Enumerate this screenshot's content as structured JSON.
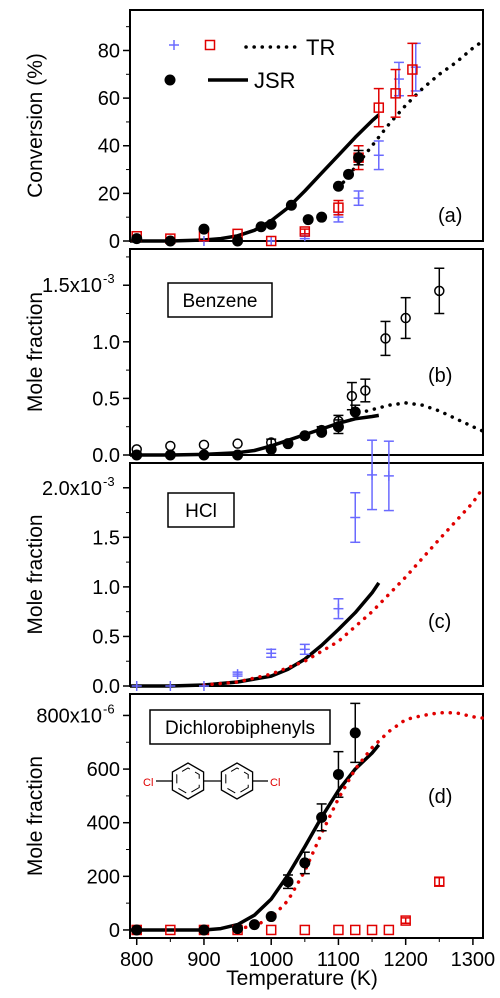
{
  "x_axis": {
    "label": "Temperature (K)",
    "range": [
      790,
      1315
    ],
    "ticks": [
      800,
      900,
      1000,
      1100,
      1200,
      1300
    ]
  },
  "legend": {
    "items": [
      {
        "marker": "cross",
        "color": "#6a6aff"
      },
      {
        "marker": "open-square",
        "color": "#e00000"
      },
      {
        "line": "dotted",
        "color": "#000000",
        "label": "TR"
      },
      {
        "marker": "filled-circle",
        "color": "#000000"
      },
      {
        "line": "solid",
        "color": "#000000",
        "label": "JSR"
      }
    ]
  },
  "colors": {
    "blue": "#6a6aff",
    "red": "#e00000",
    "black": "#000000"
  },
  "chart_data": [
    {
      "panel": "(a)",
      "type": "scatter",
      "ylabel": "Conversion (%)",
      "ylim": [
        0,
        97
      ],
      "ytick_labels": [
        "0",
        "20",
        "40",
        "60",
        "80"
      ],
      "ytick_values": [
        0,
        20,
        40,
        60,
        80
      ],
      "series": [
        {
          "name": "TR",
          "marker": "cross",
          "color": "#6a6aff",
          "x": [
            800,
            850,
            900,
            950,
            1000,
            1050,
            1100,
            1130,
            1160,
            1190,
            1215
          ],
          "y": [
            1,
            0,
            0,
            0,
            0,
            2,
            10,
            18,
            36,
            68,
            73
          ],
          "err": [
            0,
            0,
            0,
            0,
            0,
            1,
            2,
            3,
            6,
            7,
            10
          ]
        },
        {
          "name": "TR",
          "marker": "open-square",
          "color": "#e00000",
          "x": [
            800,
            850,
            900,
            950,
            1000,
            1050,
            1100,
            1130,
            1160,
            1185,
            1210
          ],
          "y": [
            2,
            1,
            2,
            3,
            0,
            4,
            14,
            35,
            56,
            62,
            72
          ],
          "err": [
            0,
            0,
            0,
            0,
            0,
            1,
            3,
            5,
            8,
            10,
            11
          ]
        },
        {
          "name": "JSR",
          "marker": "filled-circle",
          "color": "#000000",
          "x": [
            800,
            850,
            900,
            950,
            985,
            1000,
            1030,
            1055,
            1075,
            1100,
            1115,
            1130
          ],
          "y": [
            1,
            0,
            5,
            0,
            6,
            7,
            15,
            9,
            10,
            23,
            28,
            35
          ],
          "err": [
            0,
            0,
            0,
            0,
            0,
            0,
            0,
            0,
            0,
            0,
            0,
            3
          ]
        },
        {
          "name": "JSR",
          "line": "solid",
          "color": "#000000",
          "x": [
            790,
            850,
            900,
            925,
            950,
            975,
            1000,
            1025,
            1050,
            1075,
            1100,
            1125,
            1150,
            1160
          ],
          "y": [
            0,
            0,
            0.4,
            1,
            2.2,
            4.5,
            8.5,
            14,
            21,
            28.5,
            36,
            43.5,
            50.5,
            53
          ]
        },
        {
          "name": "TR",
          "line": "dotted",
          "color": "#000000",
          "x": [
            1100,
            1125,
            1150,
            1175,
            1200,
            1225,
            1250,
            1275,
            1300,
            1315
          ],
          "y": [
            22,
            31,
            40,
            49,
            57,
            64,
            70,
            75,
            81,
            84
          ]
        }
      ]
    },
    {
      "panel": "(b)",
      "type": "scatter",
      "title_box": "Benzene",
      "ylabel": "Mole fraction",
      "ylim": [
        0,
        0.00182
      ],
      "ytick_labels": [
        "0.0",
        "0.5",
        "1.0",
        "1.5x10"
      ],
      "ytick_values": [
        0,
        0.0005,
        0.001,
        0.0015
      ],
      "ytick_exponent": "-3",
      "series": [
        {
          "marker": "open-circle",
          "color": "#000000",
          "x": [
            800,
            850,
            900,
            950,
            1000,
            1050,
            1075,
            1100,
            1120,
            1140,
            1170,
            1200,
            1250
          ],
          "y": [
            5e-05,
            8e-05,
            9e-05,
            0.0001,
            0.00011,
            0.00017,
            0.00022,
            0.0003,
            0.00052,
            0.00057,
            0.00103,
            0.00121,
            0.00145
          ],
          "err": [
            0,
            0,
            0,
            0,
            3e-05,
            0,
            3e-05,
            5e-05,
            0.00012,
            0.0001,
            0.00015,
            0.00018,
            0.0002
          ]
        },
        {
          "marker": "filled-circle",
          "color": "#000000",
          "x": [
            800,
            850,
            900,
            950,
            1000,
            1025,
            1050,
            1075,
            1100,
            1125
          ],
          "y": [
            0,
            0,
            0,
            0,
            5e-05,
            0.0001,
            0.00017,
            0.0002,
            0.00025,
            0.00038
          ],
          "err": [
            0,
            0,
            0,
            0,
            0,
            0,
            0,
            0,
            6e-05,
            6e-05
          ]
        },
        {
          "line": "solid",
          "color": "#000000",
          "x": [
            790,
            850,
            900,
            950,
            975,
            1000,
            1025,
            1050,
            1075,
            1100,
            1125,
            1150,
            1160
          ],
          "y": [
            0,
            0,
            5e-06,
            2e-05,
            4e-05,
            8e-05,
            0.00013,
            0.00018,
            0.00023,
            0.00028,
            0.00032,
            0.00034,
            0.00035
          ]
        },
        {
          "line": "dotted",
          "color": "#000000",
          "x": [
            1130,
            1150,
            1175,
            1200,
            1225,
            1250,
            1275,
            1300,
            1315
          ],
          "y": [
            0.00037,
            0.0004,
            0.00044,
            0.00046,
            0.00044,
            0.00039,
            0.00032,
            0.00025,
            0.00021
          ]
        }
      ]
    },
    {
      "panel": "(c)",
      "type": "scatter",
      "title_box": "HCl",
      "ylabel": "Mole fraction",
      "ylim": [
        0,
        0.00225
      ],
      "ytick_labels": [
        "0.0",
        "0.5",
        "1.0",
        "1.5",
        "2.0x10"
      ],
      "ytick_values": [
        0,
        0.0005,
        0.001,
        0.0015,
        0.002
      ],
      "ytick_exponent": "-3",
      "series": [
        {
          "marker": "cross",
          "color": "#6a6aff",
          "x": [
            800,
            850,
            900,
            950,
            1000,
            1050,
            1100,
            1125,
            1150,
            1175
          ],
          "y": [
            0,
            0,
            0,
            0.00012,
            0.00033,
            0.00037,
            0.00078,
            0.0017,
            0.00213,
            0.00212
          ],
          "err": [
            0,
            0,
            0,
            2e-05,
            4e-05,
            5e-05,
            0.0001,
            0.00025,
            0.00035,
            0.00035
          ]
        },
        {
          "line": "solid",
          "color": "#000000",
          "x": [
            790,
            850,
            900,
            950,
            1000,
            1025,
            1050,
            1075,
            1100,
            1125,
            1150,
            1160
          ],
          "y": [
            0,
            0,
            1e-05,
            4e-05,
            0.0001,
            0.00017,
            0.00027,
            0.00041,
            0.00057,
            0.00074,
            0.00094,
            0.00104
          ]
        },
        {
          "line": "dotted",
          "color": "#e00000",
          "x": [
            900,
            950,
            1000,
            1050,
            1100,
            1150,
            1200,
            1250,
            1300,
            1315
          ],
          "y": [
            1e-05,
            4e-05,
            0.00012,
            0.00025,
            0.00045,
            0.00075,
            0.0011,
            0.00148,
            0.00185,
            0.002
          ]
        }
      ]
    },
    {
      "panel": "(d)",
      "type": "scatter",
      "title_box": "Dichlorobiphenyls",
      "ylabel": "Mole fraction",
      "ylim": [
        -30,
        880
      ],
      "ytick_labels": [
        "0",
        "200",
        "400",
        "600",
        "800x10"
      ],
      "ytick_values": [
        0,
        200,
        400,
        600,
        800
      ],
      "ytick_exponent": "-6",
      "series": [
        {
          "marker": "open-square",
          "color": "#e00000",
          "x": [
            800,
            850,
            900,
            950,
            1000,
            1050,
            1100,
            1125,
            1150,
            1175,
            1200,
            1250
          ],
          "y": [
            0,
            0,
            0,
            0,
            0,
            0,
            0,
            0,
            0,
            0,
            35,
            180
          ],
          "err": [
            0,
            0,
            0,
            0,
            0,
            0,
            0,
            0,
            0,
            0,
            10,
            15
          ]
        },
        {
          "marker": "filled-circle",
          "color": "#000000",
          "x": [
            800,
            900,
            950,
            975,
            1000,
            1025,
            1050,
            1075,
            1100,
            1125
          ],
          "y": [
            0,
            0,
            5,
            20,
            50,
            180,
            250,
            420,
            580,
            735
          ],
          "err": [
            0,
            0,
            0,
            0,
            0,
            25,
            40,
            50,
            85,
            110
          ]
        },
        {
          "line": "solid",
          "color": "#000000",
          "x": [
            790,
            900,
            925,
            950,
            975,
            1000,
            1025,
            1050,
            1075,
            1100,
            1125,
            1150,
            1160
          ],
          "y": [
            0,
            0,
            5,
            20,
            55,
            115,
            205,
            310,
            420,
            520,
            600,
            660,
            690
          ]
        },
        {
          "line": "dotted",
          "color": "#e00000",
          "x": [
            950,
            975,
            1000,
            1025,
            1050,
            1075,
            1100,
            1125,
            1150,
            1175,
            1200,
            1225,
            1250,
            1275,
            1300,
            1315
          ],
          "y": [
            5,
            15,
            45,
            110,
            220,
            360,
            490,
            600,
            680,
            740,
            785,
            800,
            810,
            810,
            795,
            790
          ]
        }
      ]
    }
  ]
}
